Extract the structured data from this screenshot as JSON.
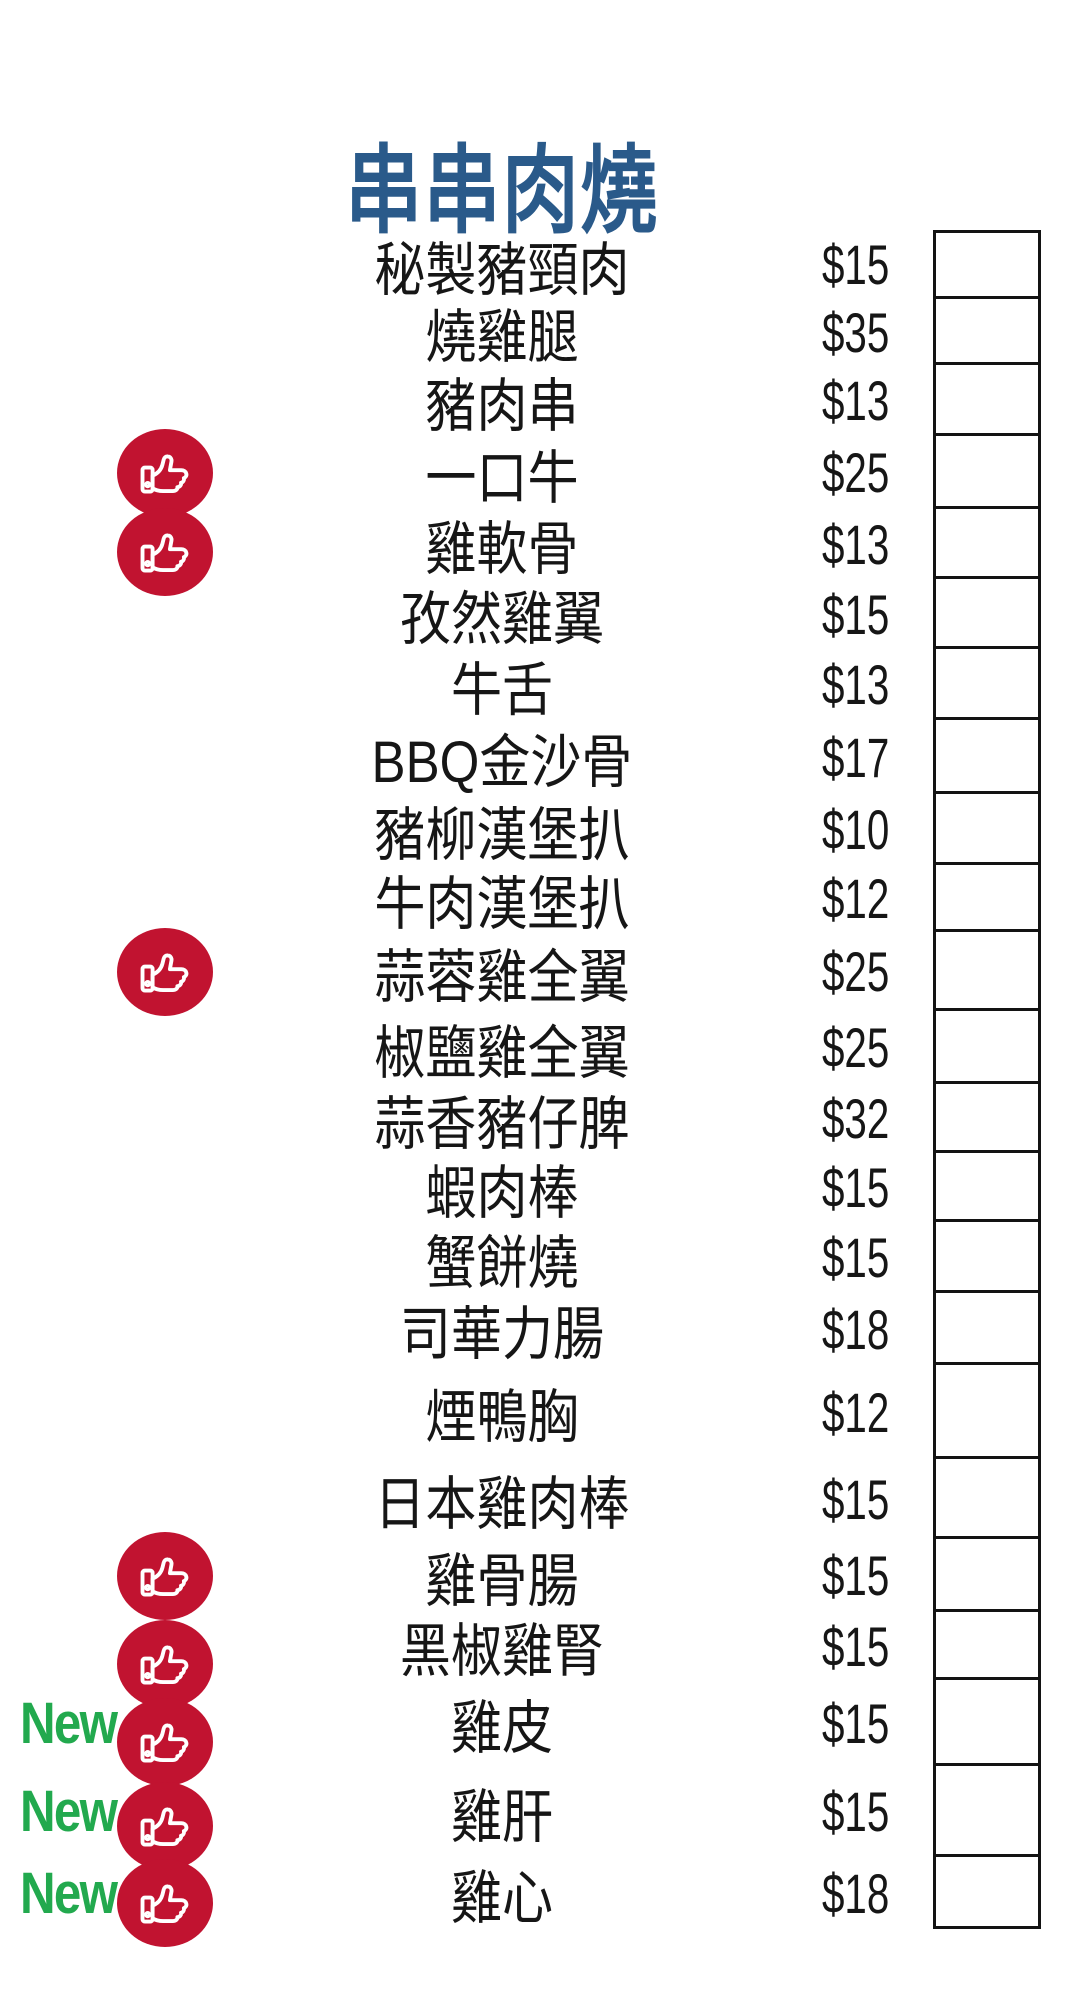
{
  "page": {
    "title": "串串肉燒"
  },
  "labels": {
    "new_badge": "New"
  },
  "icons": {
    "recommended": "thumbs-up-icon"
  },
  "colors": {
    "title_blue": "#2a5a8a",
    "badge_red": "#c11330",
    "new_green": "#22a94e",
    "text_black": "#161616",
    "box_border": "#131313"
  },
  "menu": {
    "items": [
      {
        "name": "秘製豬頸肉",
        "price": "$15",
        "recommended": false,
        "is_new": false
      },
      {
        "name": "燒雞腿",
        "price": "$35",
        "recommended": false,
        "is_new": false
      },
      {
        "name": "豬肉串",
        "price": "$13",
        "recommended": false,
        "is_new": false
      },
      {
        "name": "一口牛",
        "price": "$25",
        "recommended": true,
        "is_new": false
      },
      {
        "name": "雞軟骨",
        "price": "$13",
        "recommended": true,
        "is_new": false
      },
      {
        "name": "孜然雞翼",
        "price": "$15",
        "recommended": false,
        "is_new": false
      },
      {
        "name": "牛舌",
        "price": "$13",
        "recommended": false,
        "is_new": false
      },
      {
        "name": "BBQ金沙骨",
        "price": "$17",
        "recommended": false,
        "is_new": false
      },
      {
        "name": "豬柳漢堡扒",
        "price": "$10",
        "recommended": false,
        "is_new": false
      },
      {
        "name": "牛肉漢堡扒",
        "price": "$12",
        "recommended": false,
        "is_new": false
      },
      {
        "name": "蒜蓉雞全翼",
        "price": "$25",
        "recommended": true,
        "is_new": false
      },
      {
        "name": "椒鹽雞全翼",
        "price": "$25",
        "recommended": false,
        "is_new": false
      },
      {
        "name": "蒜香豬仔脾",
        "price": "$32",
        "recommended": false,
        "is_new": false
      },
      {
        "name": "蝦肉棒",
        "price": "$15",
        "recommended": false,
        "is_new": false
      },
      {
        "name": "蟹餅燒",
        "price": "$15",
        "recommended": false,
        "is_new": false
      },
      {
        "name": "司華力腸",
        "price": "$18",
        "recommended": false,
        "is_new": false
      },
      {
        "name": "煙鴨胸",
        "price": "$12",
        "recommended": false,
        "is_new": false
      },
      {
        "name": "日本雞肉棒",
        "price": "$15",
        "recommended": false,
        "is_new": false
      },
      {
        "name": "雞骨腸",
        "price": "$15",
        "recommended": true,
        "is_new": false
      },
      {
        "name": "黑椒雞腎",
        "price": "$15",
        "recommended": true,
        "is_new": false
      },
      {
        "name": "雞皮",
        "price": "$15",
        "recommended": true,
        "is_new": true
      },
      {
        "name": "雞肝",
        "price": "$15",
        "recommended": true,
        "is_new": true
      },
      {
        "name": "雞心",
        "price": "$18",
        "recommended": true,
        "is_new": true
      }
    ]
  }
}
